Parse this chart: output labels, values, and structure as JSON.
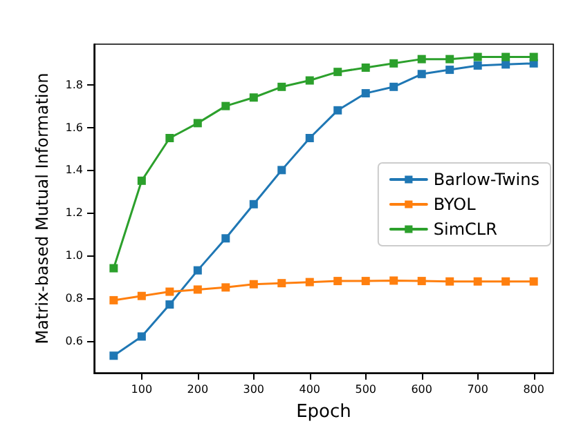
{
  "chart_data": {
    "type": "line",
    "xlabel": "Epoch",
    "ylabel": "Matrix-based Mutual Information",
    "x": [
      50,
      100,
      150,
      200,
      250,
      300,
      350,
      400,
      450,
      500,
      550,
      600,
      650,
      700,
      750,
      800
    ],
    "series": [
      {
        "name": "Barlow-Twins",
        "color": "#1f77b4",
        "values": [
          0.53,
          0.62,
          0.77,
          0.93,
          1.08,
          1.24,
          1.4,
          1.55,
          1.68,
          1.76,
          1.79,
          1.85,
          1.87,
          1.89,
          1.895,
          1.9
        ]
      },
      {
        "name": "BYOL",
        "color": "#ff7f0e",
        "values": [
          0.79,
          0.81,
          0.83,
          0.84,
          0.85,
          0.865,
          0.87,
          0.875,
          0.88,
          0.88,
          0.882,
          0.88,
          0.878,
          0.878,
          0.878,
          0.878
        ]
      },
      {
        "name": "SimCLR",
        "color": "#2ca02c",
        "values": [
          0.94,
          1.35,
          1.55,
          1.62,
          1.7,
          1.74,
          1.79,
          1.82,
          1.86,
          1.88,
          1.9,
          1.92,
          1.92,
          1.93,
          1.93,
          1.93
        ]
      }
    ],
    "xlim": [
      15,
      835
    ],
    "xticks": [
      100,
      200,
      300,
      400,
      500,
      600,
      700,
      800
    ],
    "ylim": [
      0.45,
      1.99
    ],
    "yticks": [
      0.6,
      0.8,
      {
        "value": 1,
        "label": "1.0"
      },
      1.2,
      1.4,
      1.6,
      1.8
    ],
    "grid": false,
    "legend": "right",
    "marker": "square",
    "line_style": "solid"
  }
}
